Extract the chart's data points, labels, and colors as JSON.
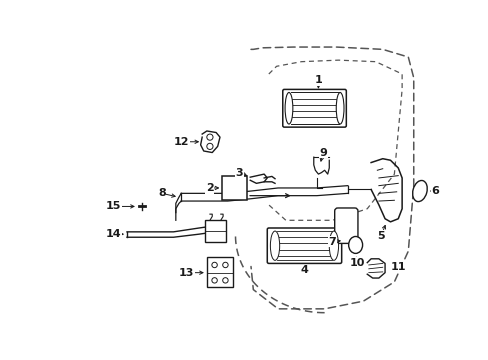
{
  "bg_color": "#ffffff",
  "line_color": "#1a1a1a",
  "dash_color": "#555555",
  "fig_width": 4.89,
  "fig_height": 3.6,
  "dpi": 100
}
